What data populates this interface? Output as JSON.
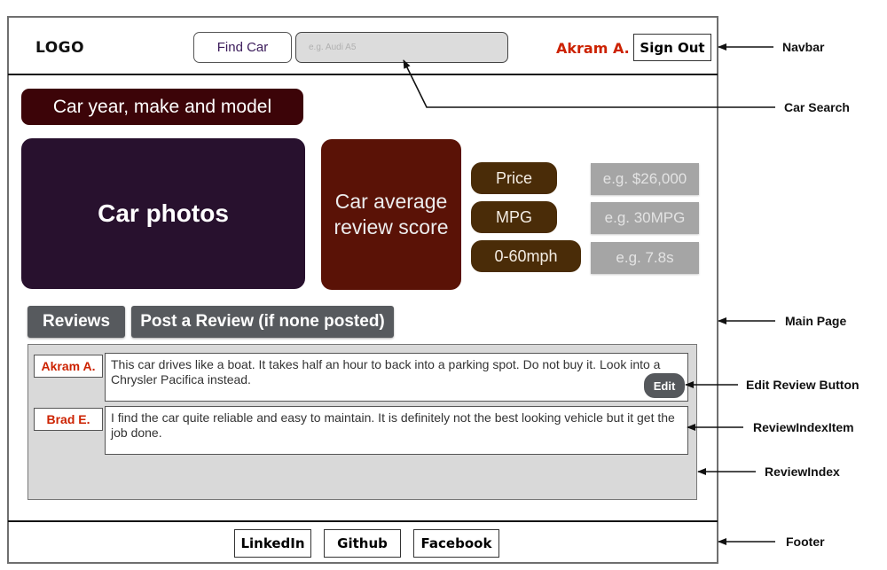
{
  "navbar": {
    "logo": "LOGO",
    "find_car": "Find Car",
    "search_placeholder": "e.g. Audi A5",
    "user_name": "Akram A.",
    "sign_out": "Sign Out"
  },
  "main": {
    "title": "Car year, make and model",
    "photos": "Car photos",
    "score_line1": "Car average",
    "score_line2": "review score",
    "stats": [
      {
        "label": "Price",
        "value": "e.g. $26,000"
      },
      {
        "label": "MPG",
        "value": "e.g. 30MPG"
      },
      {
        "label": "0-60mph",
        "value": "e.g. 7.8s"
      }
    ],
    "tabs": {
      "reviews": "Reviews",
      "post": "Post a Review (if none posted)"
    },
    "reviews": [
      {
        "author": "Akram A.",
        "text": "This car drives like a boat. It takes half an hour to back into a parking spot. Do not buy it. Look into a Chrysler Pacifica instead."
      },
      {
        "author": "Brad E.",
        "text": "I find the car quite reliable and easy to maintain. It is definitely not the best looking vehicle but it get the job done."
      }
    ],
    "edit": "Edit"
  },
  "footer": {
    "linkedin": "LinkedIn",
    "github": "Github",
    "facebook": "Facebook"
  },
  "annotations": {
    "navbar": "Navbar",
    "car_search": "Car Search",
    "main_page": "Main Page",
    "edit_review_button": "Edit Review Button",
    "review_index_item": "ReviewIndexItem",
    "review_index": "ReviewIndex",
    "footer": "Footer"
  },
  "colors": {
    "title_bg": "#3c0408",
    "photos_bg": "#28112e",
    "score_bg": "#5a1206",
    "stat_bg": "#4a2c08",
    "username": "#cc2200"
  }
}
